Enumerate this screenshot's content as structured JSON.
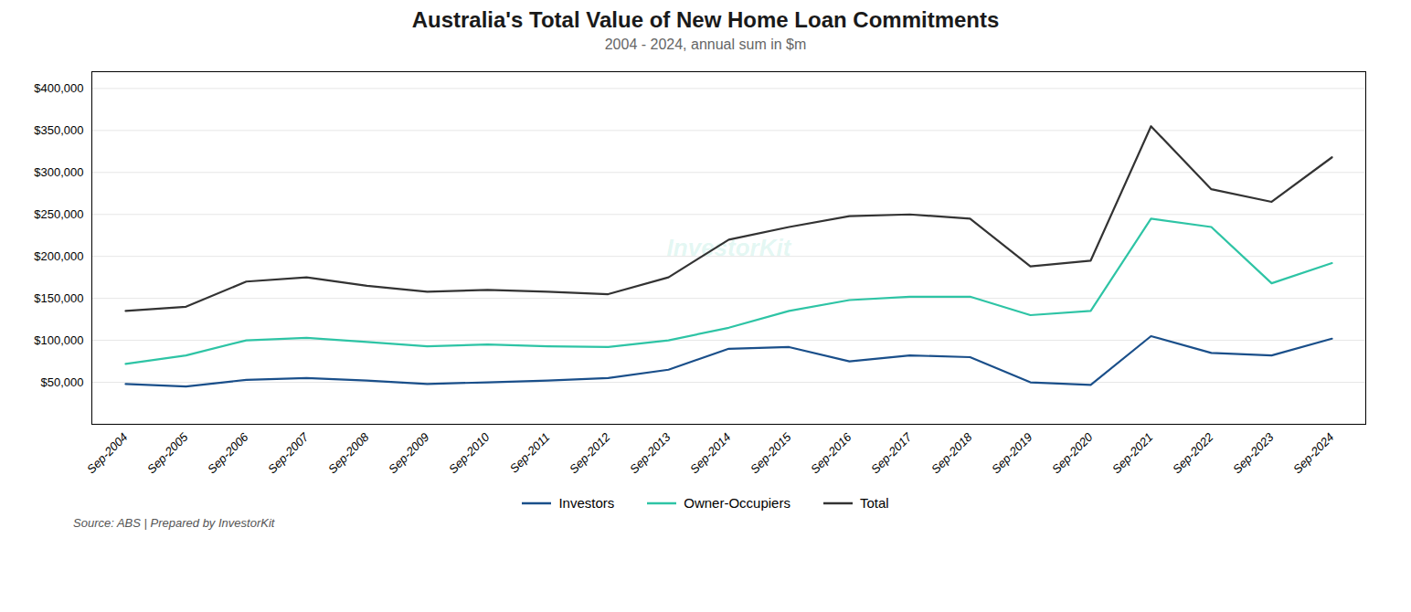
{
  "chart_data": {
    "type": "line",
    "title": "Australia's Total Value of New Home Loan Commitments",
    "subtitle": "2004 - 2024, annual sum in $m",
    "source": "Source: ABS | Prepared by InvestorKit",
    "annotations": [
      "InvestorKit"
    ],
    "categories": [
      "Sep-2004",
      "Sep-2005",
      "Sep-2006",
      "Sep-2007",
      "Sep-2008",
      "Sep-2009",
      "Sep-2010",
      "Sep-2011",
      "Sep-2012",
      "Sep-2013",
      "Sep-2014",
      "Sep-2015",
      "Sep-2016",
      "Sep-2017",
      "Sep-2018",
      "Sep-2019",
      "Sep-2020",
      "Sep-2021",
      "Sep-2022",
      "Sep-2023",
      "Sep-2024"
    ],
    "series": [
      {
        "name": "Total",
        "color": "#333333",
        "values": [
          135000,
          140000,
          170000,
          175000,
          165000,
          158000,
          160000,
          158000,
          155000,
          175000,
          220000,
          235000,
          248000,
          250000,
          245000,
          188000,
          195000,
          355000,
          280000,
          265000,
          318000
        ]
      },
      {
        "name": "Owner-Occupiers",
        "color": "#2ec4a5",
        "values": [
          72000,
          82000,
          100000,
          103000,
          98000,
          93000,
          95000,
          93000,
          92000,
          100000,
          115000,
          135000,
          148000,
          152000,
          152000,
          130000,
          135000,
          245000,
          235000,
          168000,
          192000
        ]
      },
      {
        "name": "Investors",
        "color": "#1a4f8a",
        "values": [
          48000,
          45000,
          53000,
          55000,
          52000,
          48000,
          50000,
          52000,
          55000,
          65000,
          90000,
          92000,
          75000,
          82000,
          80000,
          50000,
          47000,
          105000,
          85000,
          82000,
          102000
        ]
      }
    ],
    "ylim": [
      0,
      420000
    ],
    "yticks": [
      {
        "value": 50000,
        "label": "$50,000"
      },
      {
        "value": 100000,
        "label": "$100,000"
      },
      {
        "value": 150000,
        "label": "$150,000"
      },
      {
        "value": 200000,
        "label": "$200,000"
      },
      {
        "value": 250000,
        "label": "$250,000"
      },
      {
        "value": 300000,
        "label": "$300,000"
      },
      {
        "value": 350000,
        "label": "$350,000"
      },
      {
        "value": 400000,
        "label": "$400,000"
      }
    ],
    "grid": true,
    "legend": "bottom"
  }
}
